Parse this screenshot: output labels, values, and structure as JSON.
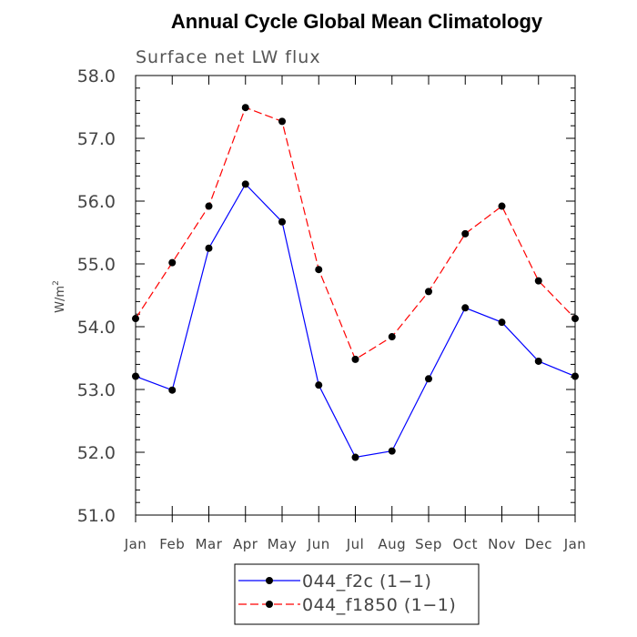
{
  "chart_data": {
    "type": "line",
    "title": "Annual Cycle Global Mean Climatology",
    "subtitle": "Surface net LW flux",
    "xlabel": "",
    "ylabel": "W/m",
    "ylabel_superscript": "2",
    "ylim": [
      51.0,
      58.0
    ],
    "yticks": [
      "51.0",
      "52.0",
      "53.0",
      "54.0",
      "55.0",
      "56.0",
      "57.0",
      "58.0"
    ],
    "categories": [
      "Jan",
      "Feb",
      "Mar",
      "Apr",
      "May",
      "Jun",
      "Jul",
      "Aug",
      "Sep",
      "Oct",
      "Nov",
      "Dec",
      "Jan"
    ],
    "series": [
      {
        "name": "044_f2c (1−1)",
        "color": "#0000ff",
        "dash": "solid",
        "values": [
          53.21,
          52.99,
          55.25,
          56.27,
          55.67,
          53.07,
          51.92,
          52.02,
          53.17,
          54.3,
          54.07,
          53.45,
          53.21
        ]
      },
      {
        "name": "044_f1850 (1−1)",
        "color": "#ff0000",
        "dash": "dashed",
        "values": [
          54.13,
          55.02,
          55.92,
          57.49,
          57.27,
          54.91,
          53.48,
          53.84,
          54.56,
          55.48,
          55.92,
          54.73,
          54.13
        ]
      }
    ],
    "legend_position": "bottom-center",
    "grid": false
  }
}
